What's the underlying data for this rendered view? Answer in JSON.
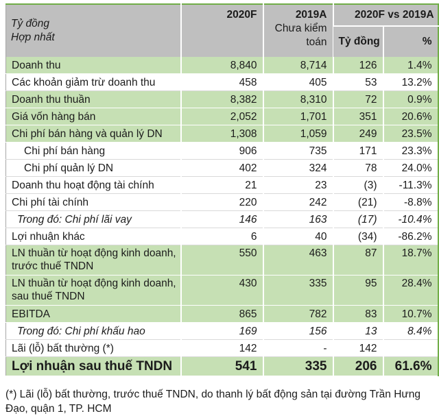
{
  "colors": {
    "row_highlight_green": "#c6e0b4",
    "header_gray": "#bfbfbf",
    "outer_border_green": "#70ad47"
  },
  "table": {
    "header": {
      "unit_line1": "Tỷ đồng",
      "unit_line2": "Hợp nhất",
      "col_2020f": "2020F",
      "col_2019a": "2019A",
      "col_2019a_note": "Chưa kiểm toán",
      "vs_label": "2020F vs 2019A",
      "vs_sub_value": "Tỷ đồng",
      "vs_sub_pct": "%"
    },
    "rows": [
      {
        "label": "Doanh thu",
        "v2020f": "8,840",
        "v2019a": "8,714",
        "diff": "126",
        "pct": "1.4%",
        "highlight": true,
        "indent": 0,
        "italic": false,
        "twoline": false,
        "total": false
      },
      {
        "label": "Các khoản giảm trừ doanh thu",
        "v2020f": "458",
        "v2019a": "405",
        "diff": "53",
        "pct": "13.2%",
        "highlight": false,
        "indent": 0,
        "italic": false,
        "twoline": false,
        "total": false
      },
      {
        "label": "Doanh thu thuần",
        "v2020f": "8,382",
        "v2019a": "8,310",
        "diff": "72",
        "pct": "0.9%",
        "highlight": true,
        "indent": 0,
        "italic": false,
        "twoline": false,
        "total": false
      },
      {
        "label": "Giá vốn hàng bán",
        "v2020f": "2,052",
        "v2019a": "1,701",
        "diff": "351",
        "pct": "20.6%",
        "highlight": true,
        "indent": 0,
        "italic": false,
        "twoline": false,
        "total": false
      },
      {
        "label": "Chi phí bán hàng và quản lý DN",
        "v2020f": "1,308",
        "v2019a": "1,059",
        "diff": "249",
        "pct": "23.5%",
        "highlight": true,
        "indent": 0,
        "italic": false,
        "twoline": false,
        "total": false
      },
      {
        "label": "Chi phí bán hàng",
        "v2020f": "906",
        "v2019a": "735",
        "diff": "171",
        "pct": "23.3%",
        "highlight": false,
        "indent": 1,
        "italic": false,
        "twoline": false,
        "total": false
      },
      {
        "label": "Chi phí quản lý DN",
        "v2020f": "402",
        "v2019a": "324",
        "diff": "78",
        "pct": "24.0%",
        "highlight": false,
        "indent": 1,
        "italic": false,
        "twoline": false,
        "total": false
      },
      {
        "label": "Doanh thu hoạt động tài chính",
        "v2020f": "21",
        "v2019a": "23",
        "diff": "(3)",
        "pct": "-11.3%",
        "highlight": false,
        "indent": 0,
        "italic": false,
        "twoline": false,
        "total": false
      },
      {
        "label": "Chi phí tài chính",
        "v2020f": "220",
        "v2019a": "242",
        "diff": "(21)",
        "pct": "-8.8%",
        "highlight": false,
        "indent": 0,
        "italic": false,
        "twoline": false,
        "total": false
      },
      {
        "label": "Trong đó: Chi phí lãi vay",
        "v2020f": "146",
        "v2019a": "163",
        "diff": "(17)",
        "pct": "-10.4%",
        "highlight": false,
        "indent": 2,
        "italic": true,
        "twoline": false,
        "total": false
      },
      {
        "label": "Lợi nhuận khác",
        "v2020f": "6",
        "v2019a": "40",
        "diff": "(34)",
        "pct": "-86.2%",
        "highlight": false,
        "indent": 0,
        "italic": false,
        "twoline": false,
        "total": false
      },
      {
        "label": "LN thuần từ hoạt động kinh doanh, trước thuế TNDN",
        "v2020f": "550",
        "v2019a": "463",
        "diff": "87",
        "pct": "18.7%",
        "highlight": true,
        "indent": 0,
        "italic": false,
        "twoline": true,
        "total": false
      },
      {
        "label": "LN thuần từ hoạt động kinh doanh, sau thuế TNDN",
        "v2020f": "430",
        "v2019a": "335",
        "diff": "95",
        "pct": "28.4%",
        "highlight": true,
        "indent": 0,
        "italic": false,
        "twoline": true,
        "total": false
      },
      {
        "label": "EBITDA",
        "v2020f": "865",
        "v2019a": "782",
        "diff": "83",
        "pct": "10.7%",
        "highlight": true,
        "indent": 0,
        "italic": false,
        "twoline": false,
        "total": false
      },
      {
        "label": "Trong đó: Chi phí khấu hao",
        "v2020f": "169",
        "v2019a": "156",
        "diff": "13",
        "pct": "8.4%",
        "highlight": false,
        "indent": 2,
        "italic": true,
        "twoline": false,
        "total": false
      },
      {
        "label": "Lãi (lỗ) bất thường (*)",
        "v2020f": "142",
        "v2019a": "-",
        "diff": "142",
        "pct": "",
        "highlight": false,
        "indent": 0,
        "italic": false,
        "twoline": false,
        "total": false
      },
      {
        "label": "Lợi nhuận sau thuế TNDN",
        "v2020f": "541",
        "v2019a": "335",
        "diff": "206",
        "pct": "61.6%",
        "highlight": true,
        "indent": 0,
        "italic": false,
        "twoline": false,
        "total": true
      }
    ]
  },
  "footnote": "(*) Lãi (lỗ) bất thường, trước thuế TNDN, do thanh lý bất động sản tại đường Trần Hưng Đạo, quận 1, TP. HCM"
}
